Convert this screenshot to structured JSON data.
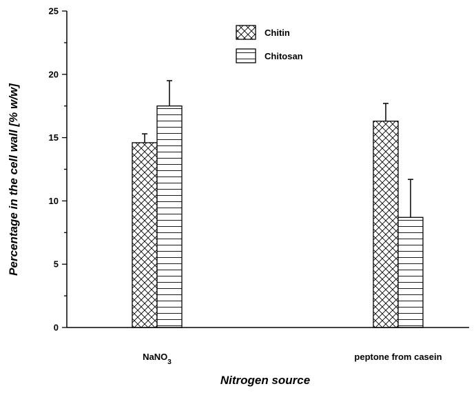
{
  "chart_data": {
    "type": "bar",
    "title": "",
    "xlabel": "Nitrogen source",
    "ylabel": "Percentage in the cell wall [% w/w]",
    "ylim": [
      0,
      25
    ],
    "yticks": [
      0,
      5,
      10,
      15,
      20,
      25
    ],
    "categories": [
      {
        "main": "NaNO",
        "sub": "3"
      },
      {
        "main": "peptone from casein",
        "sub": ""
      }
    ],
    "series": [
      {
        "name": "Chitin",
        "pattern": "crosshatch",
        "values": [
          14.6,
          16.3
        ],
        "errors": [
          0.7,
          1.4
        ]
      },
      {
        "name": "Chitosan",
        "pattern": "horizontal-lines",
        "values": [
          17.5,
          8.7
        ],
        "errors": [
          2.0,
          3.0
        ]
      }
    ],
    "legend_position": "top-center",
    "grid": false,
    "colors": {
      "bar_fill": "#ffffff",
      "stroke": "#000000"
    }
  }
}
